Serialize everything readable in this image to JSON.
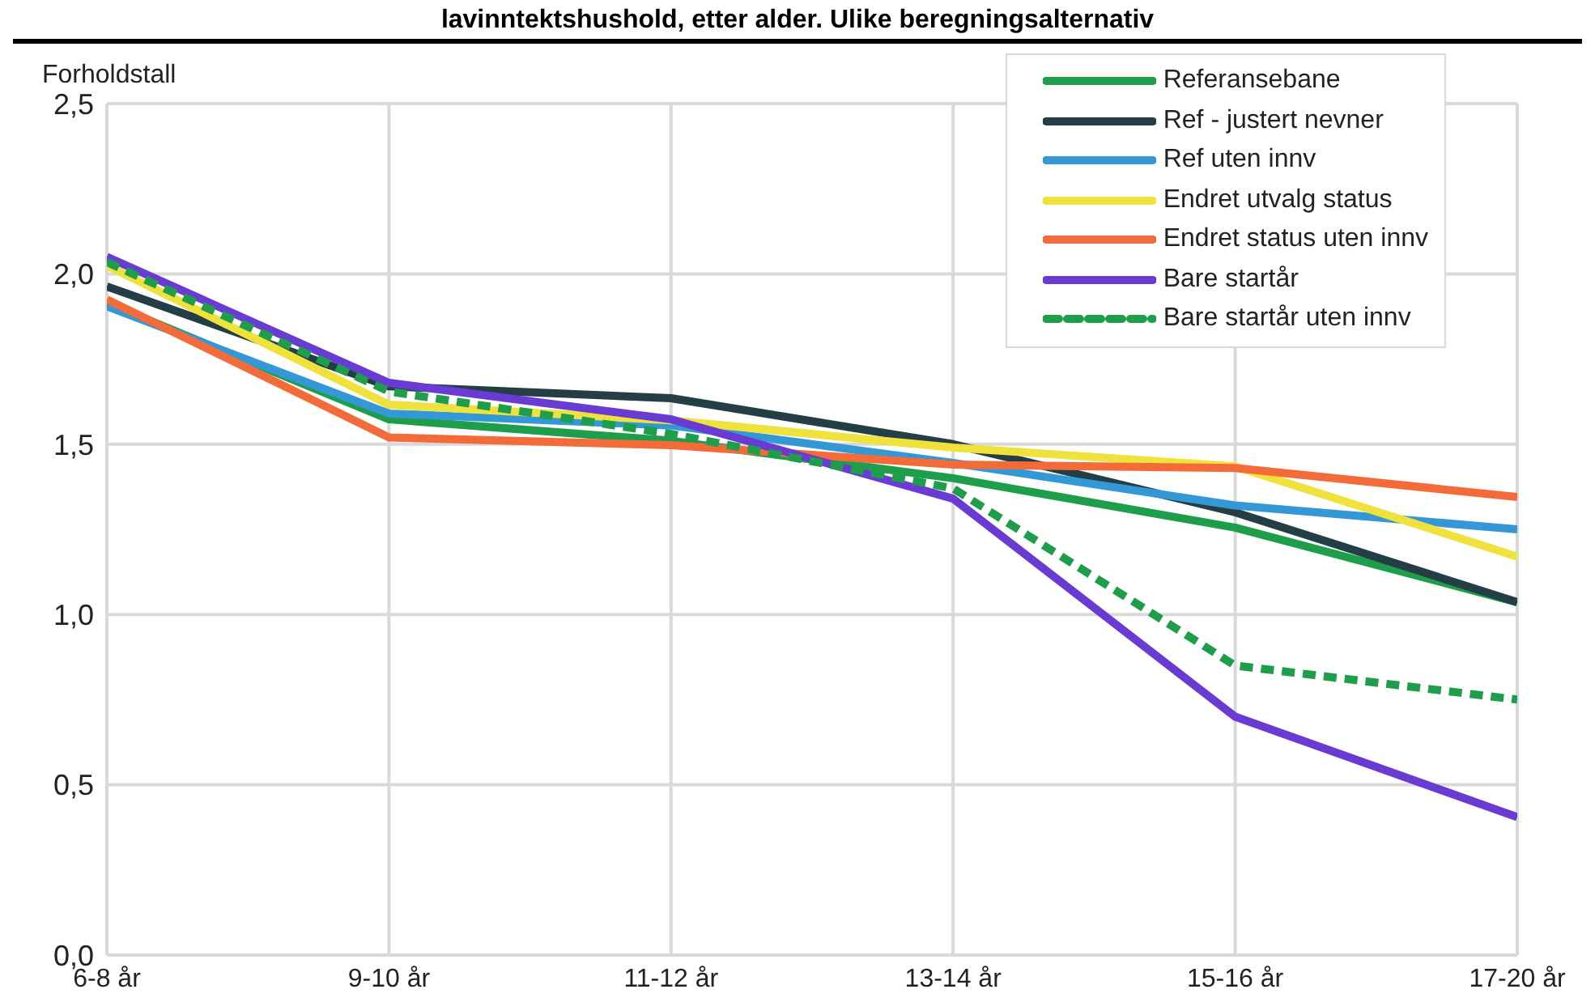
{
  "chart_data": {
    "type": "line",
    "title": "lavinntektshushold, etter alder. Ulike beregningsalternativ",
    "ylabel": "Forholdstall",
    "categories": [
      "6-8 år",
      "9-10 år",
      "11-12 år",
      "13-14 år",
      "15-16 år",
      "17-20 år"
    ],
    "series": [
      {
        "name": "Referansebane",
        "color": "#1e9e4a",
        "values": [
          1.915,
          1.573,
          1.51,
          1.4,
          1.255,
          1.036
        ]
      },
      {
        "name": "Ref - justert nevner",
        "color": "#233f45",
        "values": [
          1.963,
          1.67,
          1.635,
          1.5,
          1.3,
          1.036
        ]
      },
      {
        "name": "Ref uten innv",
        "color": "#3598d6",
        "values": [
          1.905,
          1.59,
          1.555,
          1.445,
          1.32,
          1.25
        ]
      },
      {
        "name": "Endret utvalg status",
        "color": "#f0e23c",
        "values": [
          2.025,
          1.616,
          1.57,
          1.49,
          1.435,
          1.17
        ]
      },
      {
        "name": "Endret status uten innv",
        "color": "#f26b38",
        "values": [
          1.925,
          1.52,
          1.497,
          1.44,
          1.43,
          1.345
        ]
      },
      {
        "name": "Bare startår",
        "color": "#6a3bd3",
        "values": [
          2.05,
          1.68,
          1.573,
          1.34,
          0.7,
          0.405
        ]
      },
      {
        "name": "Bare startår uten innv",
        "color": "#1e9e4a",
        "line_style": "dashed",
        "values": [
          2.035,
          1.655,
          1.53,
          1.37,
          0.85,
          0.75
        ]
      }
    ],
    "ylim": [
      0,
      2.5
    ],
    "yticks": [
      {
        "value": 0,
        "label": "0,0"
      },
      {
        "value": 0.5,
        "label": "0,5"
      },
      {
        "value": 1,
        "label": "1,0"
      },
      {
        "value": 1.5,
        "label": "1,5"
      },
      {
        "value": 2,
        "label": "2,0"
      },
      {
        "value": 2.5,
        "label": "2,5"
      }
    ],
    "grid": true,
    "legend": "top right",
    "marker": "none"
  }
}
